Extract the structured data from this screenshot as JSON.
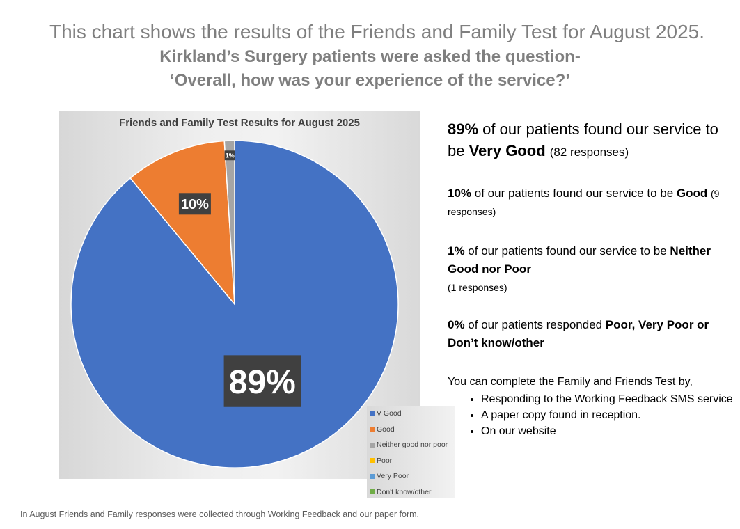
{
  "header": {
    "line1": "This chart shows the results of the Friends and Family Test for August 2025.",
    "line2": "Kirkland’s Surgery patients were asked the question-",
    "line3": "‘Overall, how was your experience of the service?’"
  },
  "chart_data": {
    "type": "pie",
    "title": "Friends and Family Test Results for August 2025",
    "categories": [
      "V Good",
      "Good",
      "Neither good nor poor",
      "Poor",
      "Very Poor",
      "Don't know/other"
    ],
    "values": [
      89,
      10,
      1,
      0,
      0,
      0
    ],
    "data_labels": [
      "89%",
      "10%",
      "1%",
      "",
      "",
      ""
    ],
    "colors": [
      "#4472c4",
      "#ed7d31",
      "#a5a5a5",
      "#ffc000",
      "#5b9bd5",
      "#70ad47"
    ],
    "legend_position": "bottom-right"
  },
  "stats": {
    "vgood": {
      "pct": "89%",
      "text1": " of our patients found our service to be ",
      "label": "Very Good",
      "responses": "(82 responses)"
    },
    "good": {
      "pct": "10%",
      "text1": " of our patients found our service to be ",
      "label": "Good",
      "responses": "(9 responses)"
    },
    "neither": {
      "pct": "1%",
      "text1": " of our patients found our service to be ",
      "label": "Neither Good nor Poor",
      "responses": "(1 responses)"
    },
    "poor": {
      "pct": "0%",
      "text1": " of our patients responded ",
      "label": "Poor, Very Poor or Don’t know/other"
    }
  },
  "howto": {
    "intro": "You can complete the Family and Friends Test by,",
    "items": [
      "Responding to the Working Feedback SMS service",
      "A paper copy found in reception.",
      "On our website"
    ]
  },
  "footer": "In August Friends and Family responses were collected through Working Feedback and our paper form."
}
